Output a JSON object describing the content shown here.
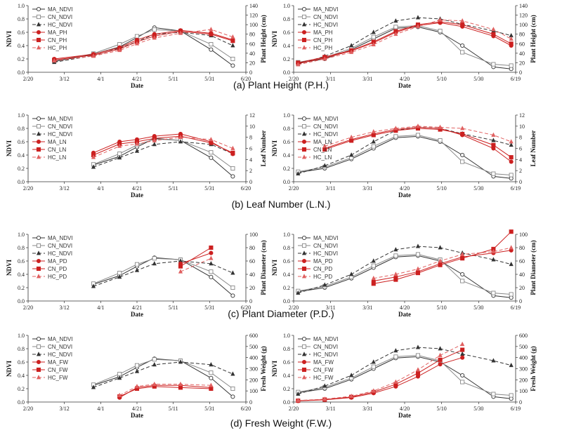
{
  "x_ticks": [
    "2/20",
    "3/12",
    "4/1",
    "4/21",
    "5/11",
    "5/31",
    "6/20"
  ],
  "x_ticks_right": [
    "2/20",
    "3/11",
    "3/31",
    "4/20",
    "5/10",
    "5/30",
    "6/19"
  ],
  "panels": [
    {
      "caption": "(a) Plant Height (P.H.)",
      "right_label": "Plant Height (cm)",
      "right_ticks": [
        0,
        20,
        40,
        60,
        80,
        100,
        120,
        140
      ],
      "legend": [
        "MA_NDVI",
        "CN_NDVI",
        "HC_NDVI",
        "MA_PH",
        "CN_PH",
        "HC_PH"
      ]
    },
    {
      "caption": "(b) Leaf Number (L.N.)",
      "right_label": "Leaf Number",
      "right_ticks": [
        0,
        2,
        4,
        6,
        8,
        10,
        12
      ],
      "legend": [
        "MA_NDVI",
        "CN_NDVI",
        "HC_NDVI",
        "MA_LN",
        "CN_LN",
        "HC_LN"
      ]
    },
    {
      "caption": "(c) Plant Diameter (P.D.)",
      "right_label": "Plant Diameter (cm)",
      "right_ticks": [
        0,
        20,
        40,
        60,
        80,
        100
      ],
      "legend": [
        "MA_NDVI",
        "CN_NDVI",
        "HC_NDVI",
        "MA_PD",
        "CN_PD",
        "HC_PD"
      ]
    },
    {
      "caption": "(d) Fresh Weight (F.W.)",
      "right_label": "Fresh Weight (g)",
      "right_ticks": [
        0,
        100,
        200,
        300,
        400,
        500,
        600
      ],
      "legend": [
        "MA_NDVI",
        "CN_NDVI",
        "HC_NDVI",
        "MA_FW",
        "CN_FW",
        "HC_FW"
      ]
    }
  ],
  "chart_data": [
    {
      "type": "line",
      "panel": "a",
      "side": "left",
      "xlabel": "Date",
      "ylabel": "NDVI",
      "y2label": "Plant Height (cm)",
      "ylim": [
        0,
        1.0
      ],
      "y2lim": [
        0,
        140
      ],
      "xcategories": [
        "2/20",
        "3/12",
        "4/1",
        "4/21",
        "5/11",
        "5/31",
        "6/20"
      ],
      "x": [
        0.12,
        0.3,
        0.42,
        0.5,
        0.58,
        0.7,
        0.84,
        0.94
      ],
      "series": [
        {
          "name": "MA_NDVI",
          "axis": "left",
          "values": [
            0.16,
            0.27,
            0.38,
            0.52,
            0.67,
            0.62,
            0.34,
            0.1
          ]
        },
        {
          "name": "CN_NDVI",
          "axis": "left",
          "values": [
            0.17,
            0.28,
            0.42,
            0.54,
            0.64,
            0.62,
            0.42,
            0.2
          ]
        },
        {
          "name": "HC_NDVI",
          "axis": "left",
          "values": [
            0.15,
            0.25,
            0.36,
            0.46,
            0.57,
            0.6,
            0.55,
            0.4
          ]
        },
        {
          "name": "MA_PH",
          "axis": "right",
          "values": [
            28,
            38,
            52,
            68,
            80,
            88,
            82,
            68
          ]
        },
        {
          "name": "CN_PH",
          "axis": "right",
          "values": [
            26,
            36,
            49,
            64,
            76,
            86,
            80,
            66
          ]
        },
        {
          "name": "HC_PH",
          "axis": "right",
          "values": [
            24,
            34,
            46,
            60,
            72,
            82,
            90,
            74
          ]
        }
      ]
    },
    {
      "type": "line",
      "panel": "a",
      "side": "right",
      "xlabel": "Date",
      "ylabel": "NDVI",
      "y2label": "Plant Height (cm)",
      "ylim": [
        0,
        1.0
      ],
      "y2lim": [
        0,
        140
      ],
      "xcategories": [
        "2/20",
        "3/11",
        "3/31",
        "4/20",
        "5/10",
        "5/30",
        "6/19"
      ],
      "x": [
        0.02,
        0.14,
        0.26,
        0.36,
        0.46,
        0.56,
        0.66,
        0.76,
        0.9,
        0.98
      ],
      "series": [
        {
          "name": "MA_NDVI",
          "axis": "left",
          "values": [
            0.14,
            0.2,
            0.34,
            0.5,
            0.66,
            0.68,
            0.6,
            0.4,
            0.08,
            0.05
          ]
        },
        {
          "name": "CN_NDVI",
          "axis": "left",
          "values": [
            0.15,
            0.22,
            0.36,
            0.53,
            0.68,
            0.7,
            0.62,
            0.3,
            0.12,
            0.1
          ]
        },
        {
          "name": "HC_NDVI",
          "axis": "left",
          "values": [
            0.12,
            0.24,
            0.4,
            0.6,
            0.77,
            0.82,
            0.8,
            0.72,
            0.62,
            0.55
          ]
        },
        {
          "name": "MA_PH",
          "axis": "right",
          "values": [
            18,
            30,
            45,
            62,
            84,
            98,
            104,
            96,
            76,
            56
          ]
        },
        {
          "name": "CN_PH",
          "axis": "right",
          "values": [
            20,
            32,
            46,
            64,
            86,
            100,
            106,
            100,
            80,
            60
          ]
        },
        {
          "name": "HC_PH",
          "axis": "right",
          "values": [
            16,
            28,
            42,
            58,
            80,
            96,
            110,
            108,
            90,
            70
          ]
        }
      ]
    },
    {
      "type": "line",
      "panel": "b",
      "side": "left",
      "xlabel": "Date",
      "ylabel": "NDVI",
      "y2label": "Leaf Number",
      "ylim": [
        0,
        1.0
      ],
      "y2lim": [
        0,
        12
      ],
      "xcategories": [
        "2/20",
        "3/12",
        "4/1",
        "4/21",
        "5/11",
        "5/31",
        "6/20"
      ],
      "x": [
        0.3,
        0.42,
        0.5,
        0.58,
        0.7,
        0.84,
        0.94
      ],
      "series": [
        {
          "name": "MA_NDVI",
          "axis": "left",
          "values": [
            0.25,
            0.38,
            0.52,
            0.65,
            0.62,
            0.36,
            0.08
          ]
        },
        {
          "name": "CN_NDVI",
          "axis": "left",
          "values": [
            0.26,
            0.42,
            0.55,
            0.64,
            0.62,
            0.44,
            0.2
          ]
        },
        {
          "name": "HC_NDVI",
          "axis": "left",
          "values": [
            0.22,
            0.36,
            0.46,
            0.56,
            0.6,
            0.56,
            0.42
          ]
        },
        {
          "name": "MA_LN",
          "axis": "right",
          "values": [
            5.2,
            7.2,
            7.6,
            8.2,
            8.6,
            7.2,
            5.0
          ]
        },
        {
          "name": "CN_LN",
          "axis": "right",
          "values": [
            4.8,
            6.8,
            7.2,
            7.8,
            8.2,
            7.0,
            5.2
          ]
        },
        {
          "name": "HC_LN",
          "axis": "right",
          "values": [
            4.4,
            6.4,
            6.8,
            7.4,
            8.0,
            7.6,
            6.0
          ]
        }
      ]
    },
    {
      "type": "line",
      "panel": "b",
      "side": "right",
      "xlabel": "Date",
      "ylabel": "NDVI",
      "y2label": "Leaf Number",
      "ylim": [
        0,
        1.0
      ],
      "y2lim": [
        0,
        12
      ],
      "xcategories": [
        "2/20",
        "3/11",
        "3/31",
        "4/20",
        "5/10",
        "5/30",
        "6/19"
      ],
      "x": [
        0.02,
        0.14,
        0.26,
        0.36,
        0.46,
        0.56,
        0.66,
        0.76,
        0.9,
        0.98
      ],
      "series": [
        {
          "name": "MA_NDVI",
          "axis": "left",
          "values": [
            0.14,
            0.2,
            0.34,
            0.5,
            0.66,
            0.68,
            0.6,
            0.4,
            0.08,
            0.05
          ]
        },
        {
          "name": "CN_NDVI",
          "axis": "left",
          "values": [
            0.15,
            0.22,
            0.36,
            0.53,
            0.68,
            0.7,
            0.62,
            0.3,
            0.12,
            0.1
          ]
        },
        {
          "name": "HC_NDVI",
          "axis": "left",
          "values": [
            0.12,
            0.24,
            0.4,
            0.6,
            0.77,
            0.82,
            0.8,
            0.72,
            0.62,
            0.55
          ]
        },
        {
          "name": "MA_LN",
          "axis": "right",
          "values": [
            null,
            6.0,
            7.6,
            8.6,
            9.4,
            9.8,
            9.6,
            8.4,
            6.0,
            3.6
          ]
        },
        {
          "name": "CN_LN",
          "axis": "right",
          "values": [
            null,
            5.8,
            7.4,
            8.4,
            9.2,
            9.6,
            9.4,
            8.6,
            6.6,
            4.4
          ]
        },
        {
          "name": "HC_LN",
          "axis": "right",
          "values": [
            null,
            6.4,
            8.0,
            9.0,
            9.6,
            10.0,
            9.8,
            9.6,
            8.4,
            7.2
          ]
        }
      ]
    },
    {
      "type": "line",
      "panel": "c",
      "side": "left",
      "xlabel": "Date",
      "ylabel": "NDVI",
      "y2label": "Plant Diameter (cm)",
      "ylim": [
        0,
        1.0
      ],
      "y2lim": [
        0,
        100
      ],
      "xcategories": [
        "2/20",
        "3/12",
        "4/1",
        "4/21",
        "5/11",
        "5/31",
        "6/20"
      ],
      "x": [
        0.3,
        0.42,
        0.5,
        0.58,
        0.7,
        0.84,
        0.94
      ],
      "series": [
        {
          "name": "MA_NDVI",
          "axis": "left",
          "values": [
            0.25,
            0.38,
            0.52,
            0.65,
            0.62,
            0.36,
            0.08
          ]
        },
        {
          "name": "CN_NDVI",
          "axis": "left",
          "values": [
            0.26,
            0.42,
            0.55,
            0.64,
            0.62,
            0.44,
            0.2
          ]
        },
        {
          "name": "HC_NDVI",
          "axis": "left",
          "values": [
            0.22,
            0.36,
            0.46,
            0.56,
            0.6,
            0.56,
            0.42
          ]
        },
        {
          "name": "MA_PD",
          "axis": "right",
          "values": [
            null,
            null,
            null,
            null,
            56,
            72,
            null
          ]
        },
        {
          "name": "CN_PD",
          "axis": "right",
          "values": [
            null,
            null,
            null,
            null,
            52,
            80,
            null
          ]
        },
        {
          "name": "HC_PD",
          "axis": "right",
          "values": [
            null,
            null,
            null,
            null,
            44,
            64,
            null
          ]
        }
      ]
    },
    {
      "type": "line",
      "panel": "c",
      "side": "right",
      "xlabel": "Date",
      "ylabel": "NDVI",
      "y2label": "Plant Diameter (cm)",
      "ylim": [
        0,
        1.0
      ],
      "y2lim": [
        0,
        100
      ],
      "xcategories": [
        "2/20",
        "3/11",
        "3/31",
        "4/20",
        "5/10",
        "5/30",
        "6/19"
      ],
      "x": [
        0.02,
        0.14,
        0.26,
        0.36,
        0.46,
        0.56,
        0.66,
        0.76,
        0.9,
        0.98
      ],
      "series": [
        {
          "name": "MA_NDVI",
          "axis": "left",
          "values": [
            0.14,
            0.2,
            0.34,
            0.5,
            0.66,
            0.68,
            0.6,
            0.4,
            0.08,
            0.05
          ]
        },
        {
          "name": "CN_NDVI",
          "axis": "left",
          "values": [
            0.15,
            0.22,
            0.36,
            0.53,
            0.68,
            0.7,
            0.62,
            0.3,
            0.12,
            0.1
          ]
        },
        {
          "name": "HC_NDVI",
          "axis": "left",
          "values": [
            0.12,
            0.24,
            0.4,
            0.6,
            0.77,
            0.82,
            0.8,
            0.72,
            0.62,
            0.55
          ]
        },
        {
          "name": "MA_PD",
          "axis": "right",
          "values": [
            null,
            null,
            null,
            30,
            36,
            44,
            56,
            66,
            72,
            76
          ]
        },
        {
          "name": "CN_PD",
          "axis": "right",
          "values": [
            null,
            null,
            null,
            26,
            32,
            42,
            54,
            64,
            78,
            104
          ]
        },
        {
          "name": "HC_PD",
          "axis": "right",
          "values": [
            null,
            null,
            null,
            34,
            40,
            48,
            60,
            70,
            74,
            80
          ]
        }
      ]
    },
    {
      "type": "line",
      "panel": "d",
      "side": "left",
      "xlabel": "Date",
      "ylabel": "NDVI",
      "y2label": "Fresh Weight (g)",
      "ylim": [
        0,
        1.0
      ],
      "y2lim": [
        0,
        600
      ],
      "xcategories": [
        "2/20",
        "3/12",
        "4/1",
        "4/21",
        "5/11",
        "5/31",
        "6/20"
      ],
      "x": [
        0.3,
        0.42,
        0.5,
        0.58,
        0.7,
        0.84,
        0.94
      ],
      "series": [
        {
          "name": "MA_NDVI",
          "axis": "left",
          "values": [
            0.25,
            0.38,
            0.52,
            0.65,
            0.62,
            0.36,
            0.08
          ]
        },
        {
          "name": "CN_NDVI",
          "axis": "left",
          "values": [
            0.26,
            0.42,
            0.55,
            0.64,
            0.62,
            0.44,
            0.2
          ]
        },
        {
          "name": "HC_NDVI",
          "axis": "left",
          "values": [
            0.22,
            0.36,
            0.46,
            0.56,
            0.6,
            0.56,
            0.42
          ]
        },
        {
          "name": "MA_FW",
          "axis": "right",
          "values": [
            null,
            40,
            130,
            150,
            150,
            130,
            null
          ]
        },
        {
          "name": "CN_FW",
          "axis": "right",
          "values": [
            null,
            50,
            120,
            140,
            130,
            120,
            null
          ]
        },
        {
          "name": "HC_FW",
          "axis": "right",
          "values": [
            null,
            60,
            140,
            160,
            160,
            150,
            null
          ]
        }
      ]
    },
    {
      "type": "line",
      "panel": "d",
      "side": "right",
      "xlabel": "Date",
      "ylabel": "NDVI",
      "y2label": "Fresh Weight (g)",
      "ylim": [
        0,
        1.0
      ],
      "y2lim": [
        0,
        600
      ],
      "xcategories": [
        "2/20",
        "3/11",
        "3/31",
        "4/20",
        "5/10",
        "5/30",
        "6/19"
      ],
      "x": [
        0.02,
        0.14,
        0.26,
        0.36,
        0.46,
        0.56,
        0.66,
        0.76,
        0.9,
        0.98
      ],
      "series": [
        {
          "name": "MA_NDVI",
          "axis": "left",
          "values": [
            0.14,
            0.2,
            0.34,
            0.5,
            0.66,
            0.68,
            0.6,
            0.4,
            0.08,
            0.05
          ]
        },
        {
          "name": "CN_NDVI",
          "axis": "left",
          "values": [
            0.15,
            0.22,
            0.36,
            0.53,
            0.68,
            0.7,
            0.62,
            0.3,
            0.12,
            0.1
          ]
        },
        {
          "name": "HC_NDVI",
          "axis": "left",
          "values": [
            0.12,
            0.24,
            0.4,
            0.6,
            0.77,
            0.82,
            0.8,
            0.72,
            0.62,
            0.55
          ]
        },
        {
          "name": "MA_FW",
          "axis": "right",
          "values": [
            10,
            20,
            40,
            80,
            140,
            230,
            340,
            400,
            null,
            null
          ]
        },
        {
          "name": "CN_FW",
          "axis": "right",
          "values": [
            12,
            22,
            46,
            90,
            160,
            260,
            380,
            470,
            null,
            null
          ]
        },
        {
          "name": "HC_FW",
          "axis": "right",
          "values": [
            14,
            26,
            52,
            100,
            180,
            290,
            420,
            520,
            null,
            null
          ]
        }
      ]
    }
  ]
}
